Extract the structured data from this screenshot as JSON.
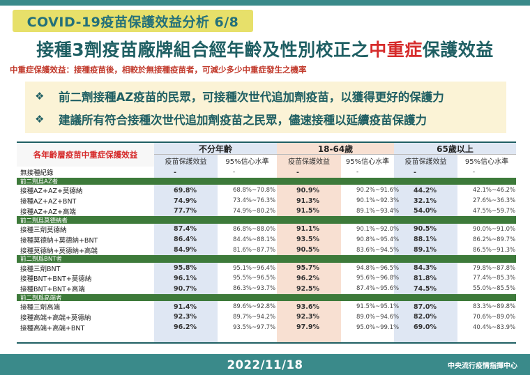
{
  "header": {
    "tag": "COVID-19疫苗保護效益分析 6/8",
    "title_before": "接種3劑疫苗廠牌組合經年齡及性別校正之",
    "title_highlight": "中重症",
    "title_after": "保護效益",
    "definition": "中重症保護效益：接種疫苗後，相較於無接種疫苗者，可減少多少中重症發生之機率"
  },
  "bullets": [
    "前二劑接種AZ疫苗的民眾，可接種次世代追加劑疫苗，以獲得更好的保護力",
    "建議所有符合接種次世代追加劑疫苗之民眾，儘速接種以延續疫苗保護力"
  ],
  "table": {
    "corner_label": "各年齡層疫苗中重症保護效益",
    "groups": [
      "不分年齡",
      "18-64歲",
      "65歲以上"
    ],
    "sub_headers": [
      "疫苗保護效益",
      "95%信心水準"
    ],
    "no_vax": {
      "label": "無接種紀錄",
      "cells": [
        "-",
        "-",
        "-",
        "-",
        "-",
        "-"
      ]
    },
    "sections": [
      {
        "title": "前二劑爲AZ者",
        "rows": [
          {
            "label": "接種AZ+AZ+莫德納",
            "cells": [
              "69.8%",
              "68.8%~70.8%",
              "90.9%",
              "90.2%~91.6%",
              "44.2%",
              "42.1%~46.2%"
            ]
          },
          {
            "label": "接種AZ+AZ+BNT",
            "cells": [
              "74.9%",
              "73.4%~76.3%",
              "91.3%",
              "90.1%~92.3%",
              "32.1%",
              "27.6%~36.3%"
            ]
          },
          {
            "label": "接種AZ+AZ+高端",
            "cells": [
              "77.7%",
              "74.9%~80.2%",
              "91.5%",
              "89.1%~93.4%",
              "54.0%",
              "47.5%~59.7%"
            ]
          }
        ]
      },
      {
        "title": "前二劑爲莫德納者",
        "rows": [
          {
            "label": "接種三劑莫德納",
            "cells": [
              "87.4%",
              "86.8%~88.0%",
              "91.1%",
              "90.1%~92.0%",
              "90.5%",
              "90.0%~91.0%"
            ]
          },
          {
            "label": "接種莫德納+莫德納+BNT",
            "cells": [
              "86.4%",
              "84.4%~88.1%",
              "93.5%",
              "90.8%~95.4%",
              "88.1%",
              "86.2%~89.7%"
            ]
          },
          {
            "label": "接種莫德納+莫德納+高端",
            "cells": [
              "84.9%",
              "81.6%~87.7%",
              "90.5%",
              "83.6%~94.5%",
              "89.1%",
              "86.5%~91.3%"
            ]
          }
        ]
      },
      {
        "title": "前二劑爲BNT者",
        "rows": [
          {
            "label": "接種三劑BNT",
            "cells": [
              "95.8%",
              "95.1%~96.4%",
              "95.7%",
              "94.8%~96.5%",
              "84.3%",
              "79.8%~87.8%"
            ]
          },
          {
            "label": "接種BNT+BNT+莫德納",
            "cells": [
              "96.1%",
              "95.5%~96.5%",
              "96.2%",
              "95.6%~96.8%",
              "81.8%",
              "77.4%~85.3%"
            ]
          },
          {
            "label": "接種BNT+BNT+高端",
            "cells": [
              "90.7%",
              "86.3%~93.7%",
              "92.5%",
              "87.4%~95.6%",
              "74.5%",
              "55.0%~85.5%"
            ]
          }
        ]
      },
      {
        "title": "前二劑爲高端者",
        "rows": [
          {
            "label": "接種三劑高端",
            "cells": [
              "91.4%",
              "89.6%~92.8%",
              "93.6%",
              "91.5%~95.1%",
              "87.0%",
              "83.3%~89.8%"
            ]
          },
          {
            "label": "接種高端+高端+莫德納",
            "cells": [
              "92.3%",
              "89.7%~94.2%",
              "92.3%",
              "89.0%~94.6%",
              "82.0%",
              "70.6%~89.0%"
            ]
          },
          {
            "label": "接種高端+高端+BNT",
            "cells": [
              "96.2%",
              "93.5%~97.7%",
              "97.9%",
              "95.0%~99.1%",
              "69.0%",
              "40.4%~83.9%"
            ]
          }
        ]
      }
    ]
  },
  "footer": {
    "date": "2022/11/18",
    "org": "中央流行疫情指揮中心"
  },
  "colors": {
    "teal": "#3a8a8a",
    "title_teal": "#1f5f63",
    "highlight_red": "#d62b2b",
    "tag_yellow": "#e7e06a",
    "section_green": "#3d7a3a",
    "band_all": "#dfe7f3",
    "band_18_64": "#f8e0d2",
    "band_65": "#dfe7f3"
  }
}
